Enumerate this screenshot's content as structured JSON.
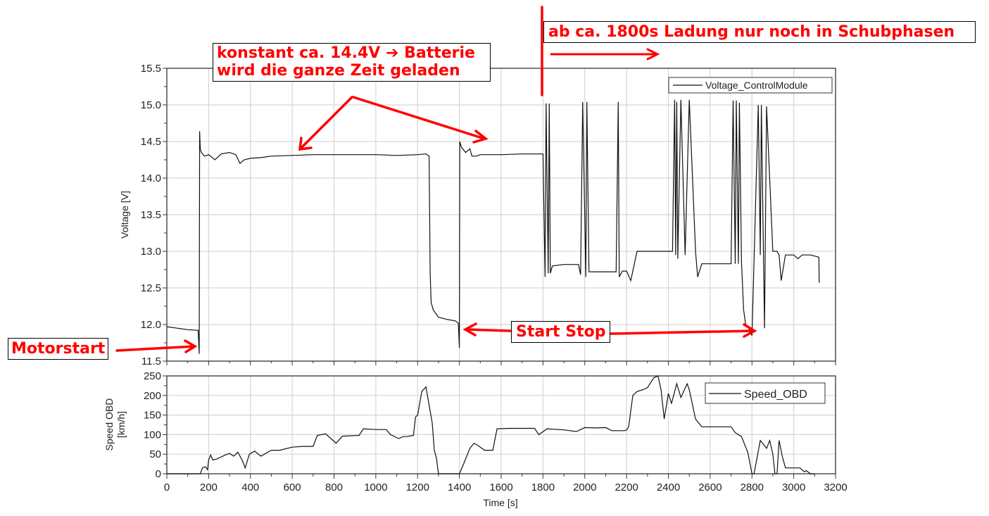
{
  "chart_data": [
    {
      "type": "line",
      "title": "",
      "xlabel": "Time [s]",
      "ylabel": "Voltage [V]",
      "xlim": [
        0,
        3200
      ],
      "ylim": [
        11.5,
        15.5
      ],
      "xticks": [
        0,
        200,
        400,
        600,
        800,
        1000,
        1200,
        1400,
        1600,
        1800,
        2000,
        2200,
        2400,
        2600,
        2800,
        3000,
        3200
      ],
      "yticks": [
        "11.5",
        "12.0",
        "12.5",
        "13.0",
        "13.5",
        "14.0",
        "14.5",
        "15.0",
        "15.5"
      ],
      "grid": true,
      "legend_position": "upper right",
      "series": [
        {
          "name": "Voltage_ControlModule",
          "x": [
            0,
            50,
            100,
            150,
            155,
            157,
            160,
            165,
            180,
            200,
            230,
            260,
            300,
            330,
            350,
            370,
            400,
            450,
            500,
            600,
            700,
            800,
            900,
            1000,
            1100,
            1200,
            1240,
            1255,
            1260,
            1265,
            1275,
            1300,
            1340,
            1380,
            1395,
            1400,
            1402,
            1410,
            1430,
            1450,
            1460,
            1480,
            1500,
            1600,
            1700,
            1780,
            1800,
            1810,
            1815,
            1825,
            1830,
            1835,
            1845,
            1900,
            1970,
            1980,
            1990,
            2005,
            2010,
            2020,
            2050,
            2100,
            2150,
            2160,
            2165,
            2180,
            2200,
            2220,
            2250,
            2300,
            2350,
            2400,
            2420,
            2430,
            2435,
            2440,
            2445,
            2460,
            2480,
            2500,
            2530,
            2540,
            2560,
            2600,
            2650,
            2700,
            2710,
            2720,
            2725,
            2735,
            2740,
            2750,
            2760,
            2770,
            2780,
            2800,
            2830,
            2840,
            2845,
            2860,
            2870,
            2900,
            2920,
            2930,
            2940,
            2960,
            3000,
            3020,
            3040,
            3080,
            3120,
            3122
          ],
          "values": [
            11.97,
            11.95,
            11.93,
            11.92,
            11.6,
            14.64,
            14.4,
            14.35,
            14.3,
            14.32,
            14.25,
            14.33,
            14.35,
            14.32,
            14.2,
            14.25,
            14.27,
            14.28,
            14.3,
            14.31,
            14.32,
            14.32,
            14.32,
            14.32,
            14.31,
            14.32,
            14.33,
            14.3,
            12.7,
            12.3,
            12.2,
            12.1,
            12.07,
            12.05,
            12.02,
            11.68,
            14.5,
            14.42,
            14.35,
            14.4,
            14.3,
            14.3,
            14.32,
            14.32,
            14.33,
            14.33,
            14.33,
            12.65,
            15.02,
            12.7,
            15.02,
            12.7,
            12.8,
            12.82,
            12.82,
            12.68,
            15.04,
            12.65,
            15.04,
            12.72,
            12.72,
            12.72,
            12.72,
            15.04,
            12.65,
            12.73,
            12.73,
            12.6,
            13.0,
            13.0,
            13.0,
            13.0,
            13.0,
            15.07,
            12.95,
            15.04,
            12.9,
            15.07,
            12.95,
            15.07,
            13.0,
            12.65,
            12.83,
            12.83,
            12.83,
            12.83,
            15.06,
            12.83,
            15.06,
            12.83,
            15.03,
            12.85,
            12.2,
            12.0,
            11.98,
            11.85,
            15.0,
            12.95,
            15.0,
            11.95,
            14.98,
            13.0,
            13.0,
            12.95,
            12.6,
            12.95,
            12.95,
            12.9,
            12.95,
            12.95,
            12.92,
            12.57
          ]
        }
      ]
    },
    {
      "type": "line",
      "title": "",
      "xlabel": "Time [s]",
      "ylabel": "Speed OBD [km/h]",
      "xlim": [
        0,
        3200
      ],
      "ylim": [
        0,
        250
      ],
      "xticks": [
        0,
        200,
        400,
        600,
        800,
        1000,
        1200,
        1400,
        1600,
        1800,
        2000,
        2200,
        2400,
        2600,
        2800,
        3000,
        3200
      ],
      "yticks": [
        "0",
        "50",
        "100",
        "150",
        "200",
        "250"
      ],
      "grid": true,
      "legend_position": "upper right",
      "series": [
        {
          "name": "Speed_OBD",
          "x": [
            0,
            160,
            170,
            185,
            195,
            200,
            210,
            220,
            240,
            280,
            300,
            320,
            340,
            360,
            375,
            395,
            420,
            450,
            500,
            540,
            600,
            650,
            700,
            720,
            760,
            810,
            840,
            920,
            940,
            1000,
            1050,
            1070,
            1110,
            1130,
            1150,
            1180,
            1190,
            1200,
            1220,
            1240,
            1260,
            1270,
            1280,
            1290,
            1300,
            1400,
            1420,
            1450,
            1470,
            1490,
            1520,
            1560,
            1580,
            1640,
            1700,
            1760,
            1780,
            1820,
            1900,
            1960,
            2000,
            2050,
            2100,
            2130,
            2190,
            2200,
            2210,
            2230,
            2250,
            2280,
            2300,
            2330,
            2350,
            2365,
            2380,
            2400,
            2415,
            2440,
            2460,
            2490,
            2500,
            2530,
            2560,
            2600,
            2700,
            2720,
            2750,
            2780,
            2800,
            2810,
            2840,
            2855,
            2870,
            2885,
            2900,
            2910,
            2920,
            2930,
            2945,
            2960,
            3000,
            3030,
            3050,
            3060,
            3080,
            3100
          ],
          "values": [
            0,
            0,
            15,
            18,
            10,
            35,
            48,
            35,
            38,
            48,
            52,
            45,
            55,
            35,
            15,
            50,
            58,
            45,
            60,
            60,
            68,
            70,
            70,
            98,
            102,
            78,
            96,
            98,
            115,
            113,
            113,
            100,
            90,
            95,
            95,
            98,
            145,
            150,
            210,
            222,
            160,
            130,
            60,
            40,
            0,
            0,
            25,
            65,
            78,
            72,
            60,
            60,
            115,
            116,
            116,
            116,
            100,
            115,
            112,
            108,
            118,
            117,
            118,
            110,
            110,
            112,
            120,
            200,
            210,
            215,
            220,
            245,
            250,
            215,
            140,
            205,
            180,
            230,
            195,
            230,
            215,
            140,
            120,
            120,
            120,
            105,
            95,
            55,
            0,
            0,
            85,
            75,
            65,
            85,
            50,
            0,
            0,
            85,
            45,
            15,
            15,
            15,
            5,
            8,
            0,
            0
          ]
        }
      ]
    }
  ],
  "annotations": {
    "charging": {
      "line1": "konstant ca. 14.4V ➔ Batterie",
      "line2": "wird die ganze Zeit geladen"
    },
    "schub": "ab ca. 1800s Ladung nur noch in Schubphasen",
    "motorstart": "Motorstart",
    "startstop": "Start Stop"
  },
  "legend": {
    "voltage": "Voltage_ControlModule",
    "speed": "Speed_OBD"
  },
  "axes": {
    "voltage_ylabel": "Voltage [V]",
    "speed_ylabel_line1": "Speed OBD",
    "speed_ylabel_line2": "[km/h]",
    "xlabel": "Time [s]"
  },
  "colors": {
    "annotation": "#ff0000",
    "trace": "#000000",
    "grid": "#d6d6d6"
  }
}
